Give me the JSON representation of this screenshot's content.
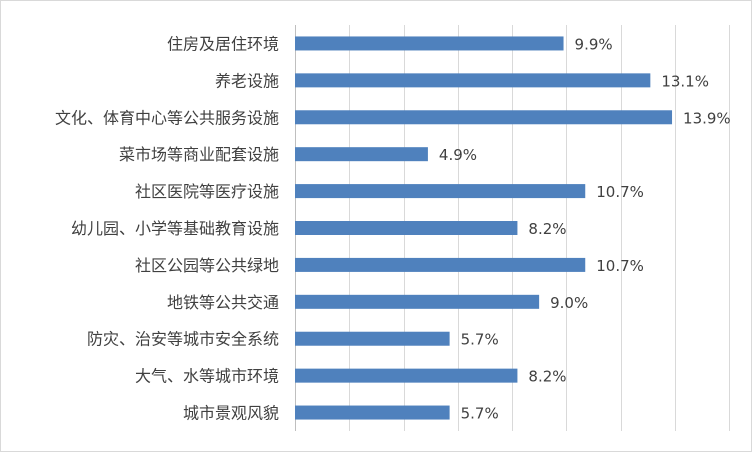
{
  "chart_data": {
    "type": "bar",
    "orientation": "horizontal",
    "categories": [
      "住房及居住环境",
      "养老设施",
      "文化、体育中心等公共服务设施",
      "菜市场等商业配套设施",
      "社区医院等医疗设施",
      "幼儿园、小学等基础教育设施",
      "社区公园等公共绿地",
      "地铁等公共交通",
      "防灾、治安等城市安全系统",
      "大气、水等城市环境",
      "城市景观风貌"
    ],
    "values": [
      9.9,
      13.1,
      13.9,
      4.9,
      10.7,
      8.2,
      10.7,
      9.0,
      5.7,
      8.2,
      5.7
    ],
    "data_labels": [
      "9.9%",
      "13.1%",
      "13.9%",
      "4.9%",
      "10.7%",
      "8.2%",
      "10.7%",
      "9.0%",
      "5.7%",
      "8.2%",
      "5.7%"
    ],
    "title": "",
    "xlabel": "",
    "ylabel": "",
    "xlim": [
      0,
      16
    ],
    "grid": true,
    "legend": "none",
    "bar_color": "#4f81bd",
    "text_color": "#404040",
    "grid_color": "#d9d9d9"
  }
}
